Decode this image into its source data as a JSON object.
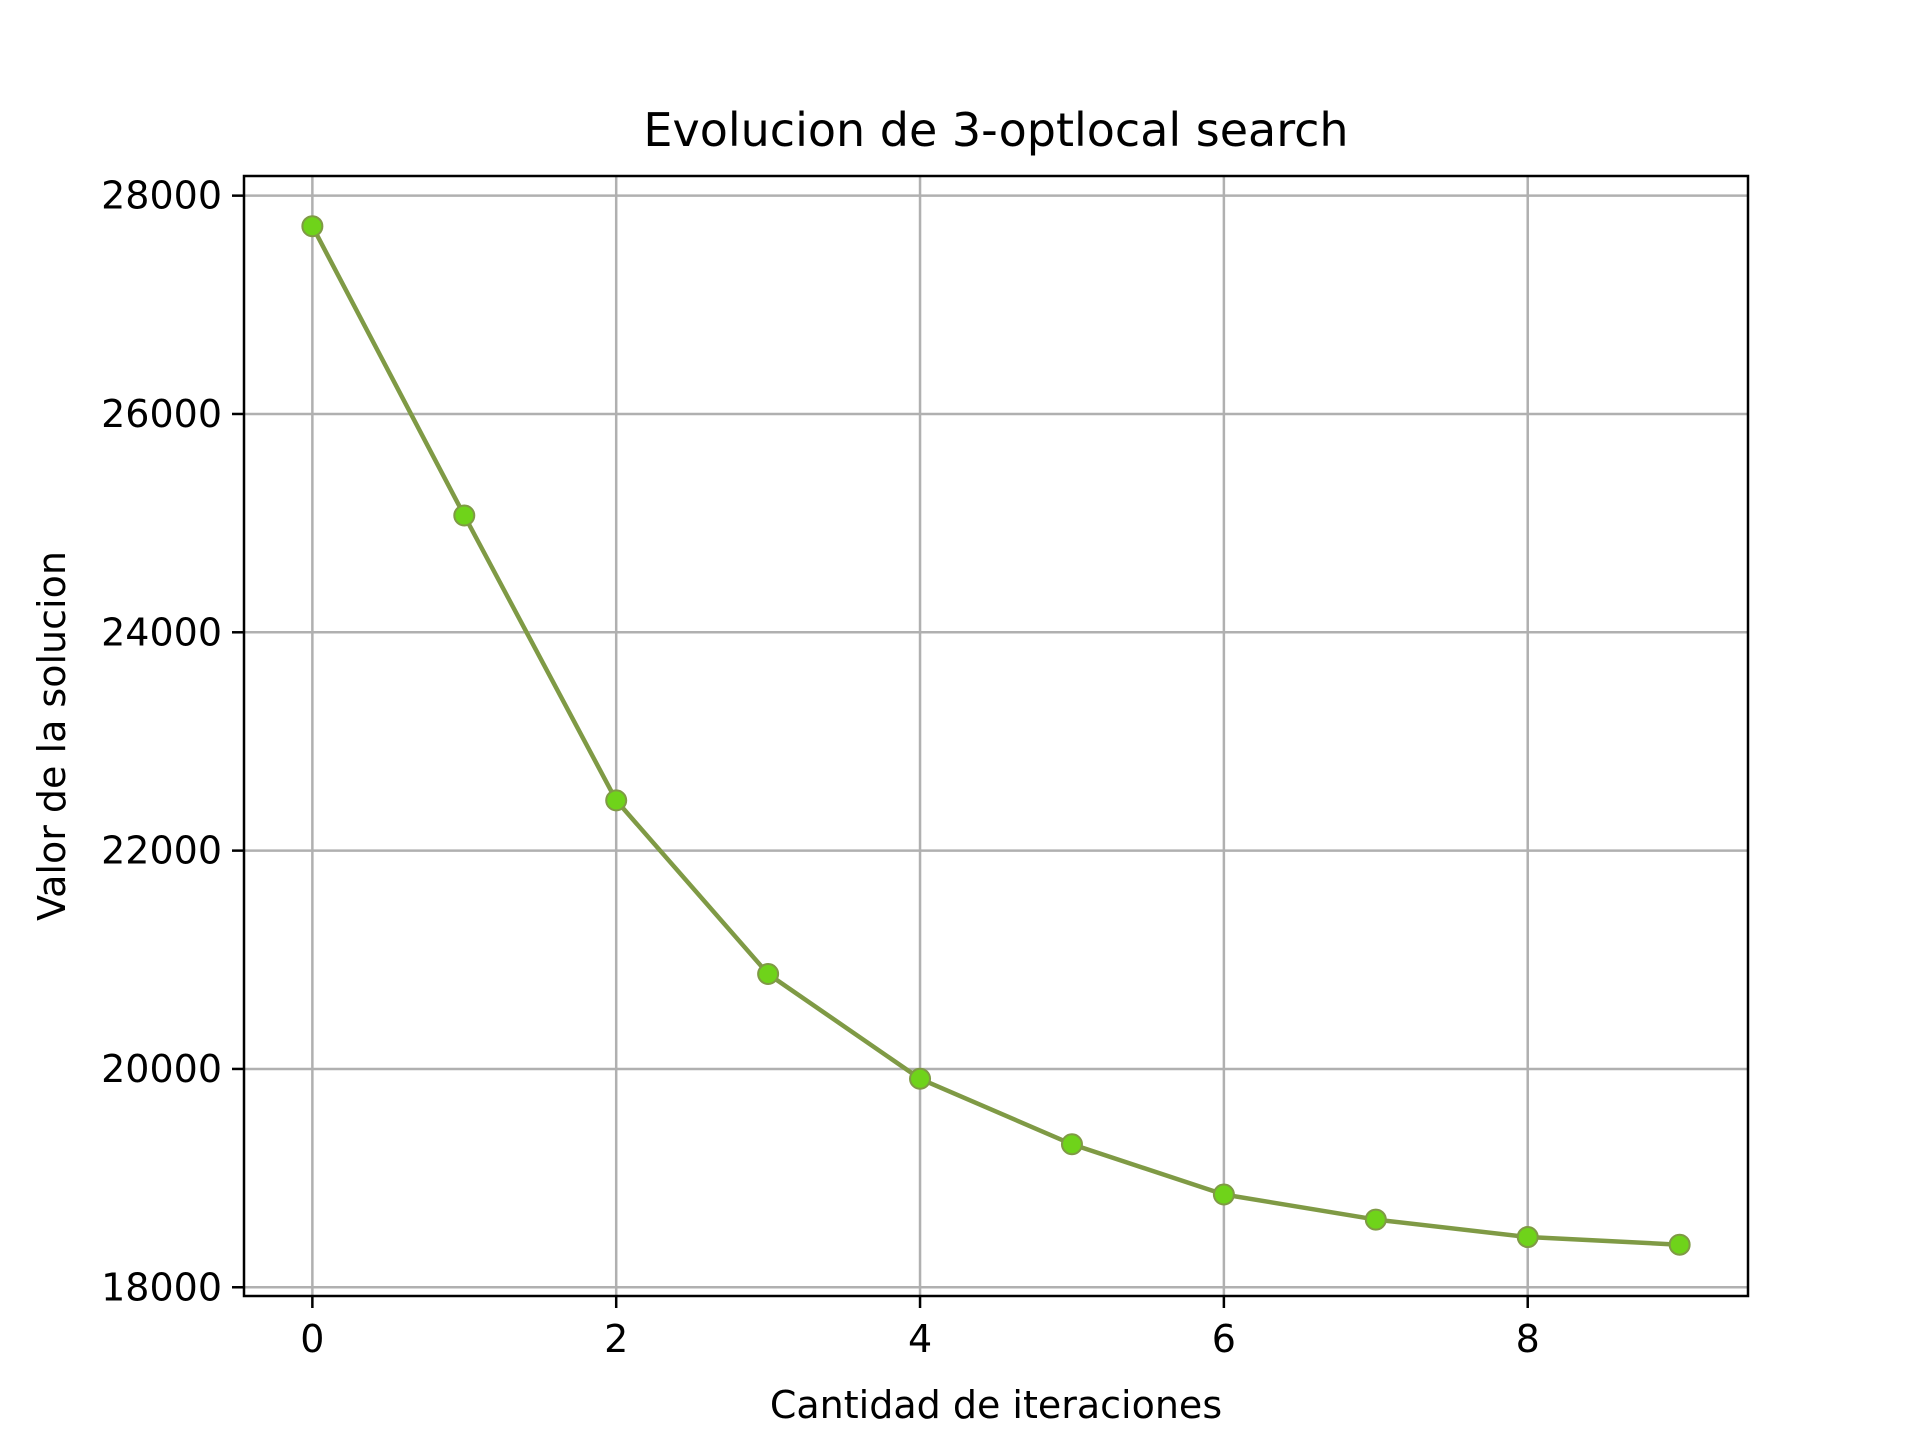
{
  "chart_data": {
    "type": "line",
    "title": "Evolucion de 3-optlocal search",
    "xlabel": "Cantidad de iteraciones",
    "ylabel": "Valor de la solucion",
    "x": [
      0,
      1,
      2,
      3,
      4,
      5,
      6,
      7,
      8,
      9
    ],
    "series": [
      {
        "values": [
          27720,
          25070,
          22460,
          20870,
          19910,
          19310,
          18850,
          18620,
          18460,
          18390
        ],
        "color": "#7f9a45",
        "marker_color": "#6fd31a"
      }
    ],
    "xlim": [
      -0.45,
      9.45
    ],
    "ylim": [
      17920,
      28180
    ],
    "xticks": [
      0,
      2,
      4,
      6,
      8
    ],
    "yticks": [
      18000,
      20000,
      22000,
      24000,
      26000,
      28000
    ],
    "xtick_labels": [
      "0",
      "2",
      "4",
      "6",
      "8"
    ],
    "ytick_labels": [
      "18000",
      "20000",
      "22000",
      "24000",
      "26000",
      "28000"
    ],
    "grid": true,
    "colors": {
      "grid": "#b0b0b0",
      "axes": "#000000",
      "line": "#7f9a45",
      "marker": "#6fd31a"
    }
  }
}
